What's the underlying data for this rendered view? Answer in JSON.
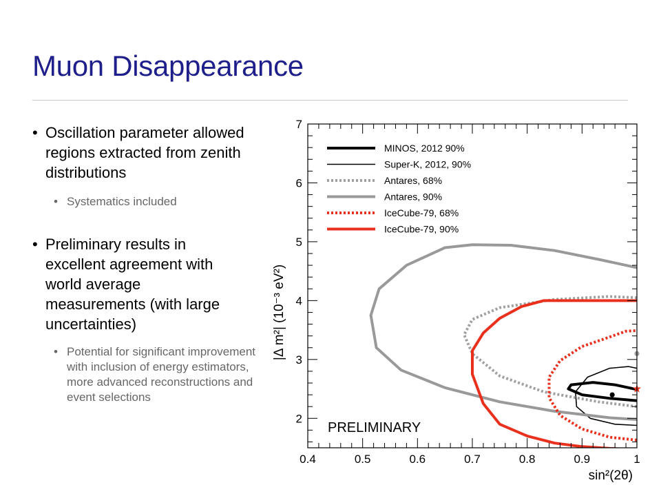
{
  "slide": {
    "title": "Muon Disappearance",
    "bullets": [
      {
        "level": 1,
        "text": "Oscillation parameter allowed regions extracted from zenith distributions"
      },
      {
        "level": 2,
        "text": "Systematics included"
      },
      {
        "level": 1,
        "text": "Preliminary results in excellent agreement with world average measurements (with large uncertainties)"
      },
      {
        "level": 2,
        "text": "Potential for significant improvement with inclusion of energy estimators, more advanced reconstructions and event selections"
      }
    ],
    "bullet_glyph": "•",
    "colors": {
      "title": "#1f1f8c",
      "body": "#000000",
      "sub": "#666666"
    }
  },
  "chart_data": {
    "type": "contour",
    "xlabel": "sin²(2θ)",
    "ylabel": "|Δ m²| (10⁻³ eV²)",
    "xlim": [
      0.4,
      1.0
    ],
    "ylim": [
      1.5,
      7.0
    ],
    "xticks": [
      "0.4",
      "0.5",
      "0.6",
      "0.7",
      "0.8",
      "0.9",
      "1"
    ],
    "yticks": [
      "2",
      "3",
      "4",
      "5",
      "6",
      "7"
    ],
    "annotation": "PRELIMINARY",
    "legend_position": "top-left",
    "series": [
      {
        "name": "MINOS, 2012 90%",
        "color": "#000000",
        "style": "solid",
        "weight": "thick",
        "points": [
          [
            1.0,
            2.3
          ],
          [
            0.95,
            2.34
          ],
          [
            0.9,
            2.4
          ],
          [
            0.875,
            2.5
          ],
          [
            0.88,
            2.57
          ],
          [
            0.92,
            2.61
          ],
          [
            0.96,
            2.57
          ],
          [
            0.99,
            2.51
          ],
          [
            1.0,
            2.49
          ]
        ]
      },
      {
        "name": "Super-K, 2012, 90%",
        "color": "#000000",
        "style": "solid",
        "weight": "thin",
        "points": [
          [
            1.0,
            1.88
          ],
          [
            0.96,
            1.9
          ],
          [
            0.915,
            2.0
          ],
          [
            0.89,
            2.2
          ],
          [
            0.888,
            2.45
          ],
          [
            0.91,
            2.7
          ],
          [
            0.95,
            2.85
          ],
          [
            0.985,
            2.88
          ],
          [
            1.0,
            2.85
          ]
        ]
      },
      {
        "name": "Antares, 68%",
        "color": "#a0a0a0",
        "style": "dotted",
        "weight": "thick",
        "points": [
          [
            1.0,
            2.2
          ],
          [
            0.93,
            2.28
          ],
          [
            0.83,
            2.45
          ],
          [
            0.75,
            2.72
          ],
          [
            0.7,
            3.1
          ],
          [
            0.685,
            3.42
          ],
          [
            0.7,
            3.68
          ],
          [
            0.75,
            3.88
          ],
          [
            0.85,
            4.02
          ],
          [
            0.95,
            4.07
          ],
          [
            1.0,
            4.05
          ]
        ]
      },
      {
        "name": "Antares, 90%",
        "color": "#999999",
        "style": "solid",
        "weight": "thick",
        "points": [
          [
            1.0,
            1.98
          ],
          [
            0.95,
            2.01
          ],
          [
            0.85,
            2.12
          ],
          [
            0.75,
            2.28
          ],
          [
            0.65,
            2.52
          ],
          [
            0.57,
            2.82
          ],
          [
            0.525,
            3.2
          ],
          [
            0.515,
            3.75
          ],
          [
            0.53,
            4.2
          ],
          [
            0.58,
            4.6
          ],
          [
            0.65,
            4.9
          ],
          [
            0.7,
            4.95
          ],
          [
            0.77,
            4.94
          ],
          [
            0.85,
            4.85
          ],
          [
            0.93,
            4.7
          ],
          [
            1.0,
            4.56
          ]
        ]
      },
      {
        "name": "IceCube-79, 68%",
        "color": "#e8301c",
        "style": "dotted",
        "weight": "thick",
        "points": [
          [
            1.0,
            1.63
          ],
          [
            0.95,
            1.68
          ],
          [
            0.9,
            1.82
          ],
          [
            0.86,
            2.05
          ],
          [
            0.84,
            2.35
          ],
          [
            0.84,
            2.7
          ],
          [
            0.86,
            2.98
          ],
          [
            0.9,
            3.22
          ],
          [
            0.95,
            3.38
          ],
          [
            0.98,
            3.48
          ],
          [
            1.0,
            3.49
          ]
        ]
      },
      {
        "name": "IceCube-79, 90%",
        "color": "#e8301c",
        "style": "solid",
        "weight": "thick",
        "points": [
          [
            1.0,
            1.47
          ],
          [
            0.95,
            1.49
          ],
          [
            0.9,
            1.52
          ],
          [
            0.85,
            1.58
          ],
          [
            0.8,
            1.7
          ],
          [
            0.75,
            1.9
          ],
          [
            0.72,
            2.25
          ],
          [
            0.7,
            2.75
          ],
          [
            0.7,
            3.15
          ],
          [
            0.72,
            3.45
          ],
          [
            0.75,
            3.7
          ],
          [
            0.79,
            3.9
          ],
          [
            0.83,
            4.0
          ],
          [
            1.0,
            4.0
          ]
        ]
      }
    ],
    "markers": [
      {
        "x": 0.955,
        "y": 2.4,
        "shape": "dot",
        "color": "#000000"
      },
      {
        "x": 1.0,
        "y": 3.1,
        "shape": "dot",
        "color": "#a0a0a0"
      },
      {
        "x": 1.0,
        "y": 2.5,
        "shape": "star",
        "color": "#e8301c"
      }
    ]
  }
}
